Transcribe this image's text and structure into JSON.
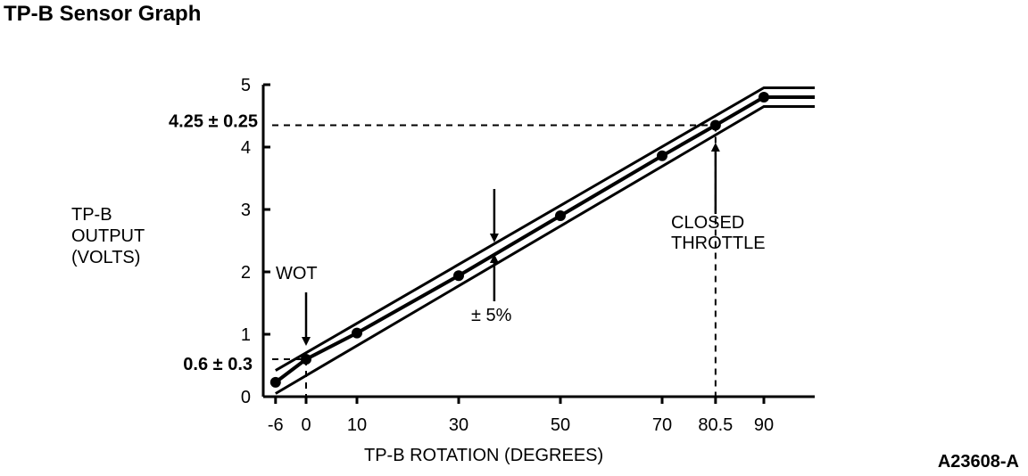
{
  "page": {
    "title": "TP-B Sensor Graph",
    "figure_id": "A23608-A"
  },
  "chart_data": {
    "type": "line",
    "title": "TP-B Sensor Graph",
    "xlabel": "TP-B ROTATION (DEGREES)",
    "ylabel_lines": [
      "TP-B",
      "OUTPUT",
      "(VOLTS)"
    ],
    "x_ticks": [
      -6,
      0,
      10,
      30,
      50,
      70,
      80.5,
      90
    ],
    "x_tick_labels": [
      "-6",
      "0",
      "10",
      "30",
      "50",
      "70",
      "80.5",
      "90"
    ],
    "y_ticks": [
      0,
      1,
      2,
      3,
      4,
      5
    ],
    "y_tick_labels": [
      "0",
      "1",
      "2",
      "3",
      "4",
      "5"
    ],
    "xlim": [
      -6,
      100
    ],
    "ylim": [
      0,
      5
    ],
    "series": [
      {
        "role": "nominal",
        "x": [
          -6,
          0,
          10,
          30,
          50,
          70,
          80.5,
          90,
          100
        ],
        "y": [
          0.23,
          0.6,
          1.02,
          1.94,
          2.9,
          3.86,
          4.35,
          4.8,
          4.8
        ]
      },
      {
        "role": "upper",
        "x": [
          -6,
          90,
          100
        ],
        "y": [
          0.42,
          4.95,
          4.95
        ]
      },
      {
        "role": "lower",
        "x": [
          -6,
          90,
          100
        ],
        "y": [
          0.05,
          4.65,
          4.65
        ]
      }
    ],
    "markers": [
      {
        "x": -6,
        "y": 0.23
      },
      {
        "x": 0,
        "y": 0.6
      },
      {
        "x": 10,
        "y": 1.02
      },
      {
        "x": 30,
        "y": 1.94
      },
      {
        "x": 50,
        "y": 2.9
      },
      {
        "x": 70,
        "y": 3.86
      },
      {
        "x": 80.5,
        "y": 4.35
      },
      {
        "x": 90,
        "y": 4.8
      }
    ],
    "reference_lines": [
      {
        "label": "4.25 ± 0.25",
        "x": 80.5,
        "y": 4.35
      },
      {
        "label": "0.6 ± 0.3",
        "x": 0,
        "y": 0.6
      }
    ],
    "annotations": [
      {
        "text": "WOT",
        "points_to_x": 0
      },
      {
        "text_lines": [
          "CLOSED",
          "THROTTLE"
        ],
        "points_to_x": 80.5
      },
      {
        "text": "± 5%",
        "points_to_x": 37
      }
    ]
  }
}
